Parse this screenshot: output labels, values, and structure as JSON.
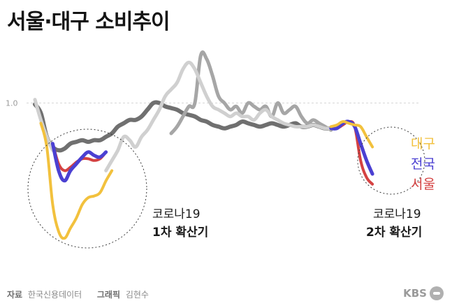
{
  "title": "서울·대구 소비추이",
  "footer": {
    "source_label": "자료",
    "source_value": "한국신용데이터",
    "graphic_label": "그래픽",
    "graphic_value": "김현수",
    "logo": "KBS"
  },
  "chart_data": {
    "type": "line",
    "ytick_labels": [
      "1.0"
    ],
    "yticks": [
      1.0
    ],
    "ylim": [
      0.53,
      1.16
    ],
    "xlim": [
      0,
      63
    ],
    "grid": true,
    "series": [
      {
        "id": "background_a",
        "color": "#707070",
        "width": 6,
        "x": [
          0,
          1,
          2,
          3,
          4,
          5,
          6,
          7,
          8,
          9,
          10,
          11,
          12,
          13,
          14,
          15,
          16,
          17,
          18,
          19,
          20,
          21,
          22,
          23,
          24,
          25,
          26,
          27,
          28,
          29,
          30,
          31,
          32,
          33,
          34,
          35,
          36,
          37,
          38,
          39,
          40,
          41,
          42,
          43,
          44,
          45,
          46,
          47,
          48,
          49,
          50
        ],
        "y": [
          0.996,
          0.97,
          0.9,
          0.87,
          0.86,
          0.865,
          0.88,
          0.885,
          0.89,
          0.885,
          0.89,
          0.89,
          0.9,
          0.91,
          0.93,
          0.94,
          0.95,
          0.95,
          0.96,
          0.98,
          1.0,
          1.0,
          0.99,
          0.985,
          0.98,
          0.97,
          0.965,
          0.96,
          0.95,
          0.945,
          0.935,
          0.93,
          0.925,
          0.93,
          0.935,
          0.945,
          0.94,
          0.935,
          0.93,
          0.935,
          0.94,
          0.935,
          0.93,
          0.935,
          0.94,
          0.93,
          0.93,
          0.935,
          0.93,
          0.925,
          0.925
        ]
      },
      {
        "id": "background_b",
        "color": "#a6a6a6",
        "width": 5,
        "x": [
          23,
          24,
          25,
          26,
          27,
          28,
          29,
          30,
          31,
          32,
          33,
          34,
          35,
          36,
          37,
          38,
          39,
          40,
          41,
          42,
          43,
          44,
          45,
          46,
          47,
          48,
          49,
          50
        ],
        "y": [
          0.91,
          0.93,
          0.96,
          0.99,
          1.0,
          1.14,
          1.13,
          1.08,
          1.02,
          1.0,
          0.98,
          0.99,
          0.97,
          1.0,
          0.99,
          0.98,
          0.99,
          0.96,
          1.0,
          0.97,
          0.98,
          0.99,
          0.96,
          0.94,
          0.95,
          0.94,
          0.93,
          0.92
        ]
      },
      {
        "id": "background_c",
        "color": "#d0d0d0",
        "width": 5,
        "x": [
          0,
          1,
          2,
          3,
          12,
          13,
          14,
          15,
          16,
          17,
          18,
          19,
          20,
          21,
          22,
          23,
          24,
          25,
          26,
          27,
          28,
          29,
          30,
          31,
          32,
          33,
          34,
          35,
          36,
          37,
          38,
          39,
          40,
          41,
          42,
          43,
          44,
          45,
          46,
          47,
          48,
          49,
          50
        ],
        "y": [
          1.01,
          0.95,
          0.9,
          0.86,
          0.8,
          0.83,
          0.86,
          0.9,
          0.89,
          0.87,
          0.9,
          0.92,
          0.95,
          0.98,
          1.02,
          1.04,
          1.06,
          1.1,
          1.12,
          1.1,
          1.06,
          1.02,
          0.99,
          0.98,
          0.97,
          0.96,
          0.97,
          0.96,
          0.96,
          0.95,
          0.97,
          0.98,
          0.96,
          0.95,
          0.94,
          0.935,
          0.93,
          0.93,
          0.93,
          0.935,
          0.93,
          0.925,
          0.925
        ]
      },
      {
        "id": "seoul",
        "color": "#d44242",
        "width": 4,
        "x": [
          3,
          4,
          5,
          6,
          7,
          8,
          9,
          10,
          11,
          12,
          50,
          51,
          52,
          53,
          54,
          55,
          56,
          57
        ],
        "y": [
          0.88,
          0.82,
          0.8,
          0.81,
          0.825,
          0.835,
          0.835,
          0.83,
          0.835,
          0.855,
          0.925,
          0.925,
          0.935,
          0.945,
          0.93,
          0.83,
          0.78,
          0.76
        ]
      },
      {
        "id": "national",
        "color": "#4b40d2",
        "width": 5,
        "x": [
          3,
          4,
          5,
          6,
          7,
          8,
          9,
          10,
          11,
          12,
          50,
          51,
          52,
          53,
          54,
          55,
          56,
          57
        ],
        "y": [
          0.88,
          0.8,
          0.77,
          0.8,
          0.82,
          0.84,
          0.855,
          0.845,
          0.84,
          0.855,
          0.925,
          0.925,
          0.94,
          0.945,
          0.93,
          0.88,
          0.83,
          0.79
        ]
      },
      {
        "id": "daegu",
        "color": "#f2c13d",
        "width": 4,
        "x": [
          1,
          2,
          3,
          4,
          5,
          6,
          7,
          8,
          9,
          10,
          11,
          12,
          13,
          50,
          51,
          52,
          53,
          54,
          55,
          56,
          57
        ],
        "y": [
          0.94,
          0.87,
          0.7,
          0.62,
          0.6,
          0.63,
          0.66,
          0.7,
          0.72,
          0.725,
          0.735,
          0.77,
          0.8,
          0.93,
          0.935,
          0.945,
          0.94,
          0.935,
          0.93,
          0.9,
          0.87
        ]
      }
    ],
    "legend": {
      "placement": "right",
      "entries": [
        {
          "name": "대구",
          "color": "#f2c13d"
        },
        {
          "name": "전국",
          "color": "#4b40d2"
        },
        {
          "name": "서울",
          "color": "#d44242"
        }
      ]
    },
    "annotations": [
      {
        "line1": "코로나19",
        "line2": "1차 확산기"
      },
      {
        "line1": "코로나19",
        "line2": "2차 확산기"
      }
    ]
  }
}
